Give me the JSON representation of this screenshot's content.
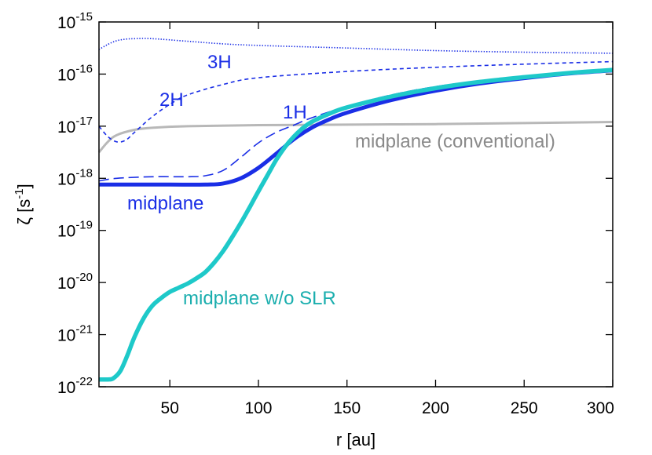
{
  "chart_data": {
    "type": "line",
    "title": "",
    "xlabel": "r [au]",
    "ylabel": {
      "base": "ζ [s",
      "sup": "-1",
      "tail": "]"
    },
    "xscale": "linear",
    "yscale": "log",
    "xlim": [
      10,
      300
    ],
    "ylim_exponent": [
      -22,
      -15
    ],
    "grid": false,
    "x_ticks": [
      50,
      100,
      150,
      200,
      250,
      300
    ],
    "y_ticks": [
      {
        "base": "10",
        "exp": "-22",
        "value": -22
      },
      {
        "base": "10",
        "exp": "-21",
        "value": -21
      },
      {
        "base": "10",
        "exp": "-20",
        "value": -20
      },
      {
        "base": "10",
        "exp": "-19",
        "value": -19
      },
      {
        "base": "10",
        "exp": "-18",
        "value": -18
      },
      {
        "base": "10",
        "exp": "-17",
        "value": -17
      },
      {
        "base": "10",
        "exp": "-16",
        "value": -16
      },
      {
        "base": "10",
        "exp": "-15",
        "value": -15
      }
    ],
    "series": [
      {
        "name": "midplane (conventional)",
        "color": "#b8b8b8",
        "style": "solid",
        "width": 3,
        "points": [
          [
            10,
            -17.5
          ],
          [
            15,
            -17.3
          ],
          [
            20,
            -17.17
          ],
          [
            30,
            -17.07
          ],
          [
            40,
            -17.03
          ],
          [
            60,
            -17.0
          ],
          [
            100,
            -16.98
          ],
          [
            150,
            -16.97
          ],
          [
            200,
            -16.96
          ],
          [
            250,
            -16.94
          ],
          [
            300,
            -16.92
          ]
        ]
      },
      {
        "name": "3H",
        "color": "#1a2ee6",
        "style": "dotted",
        "width": 1.6,
        "points": [
          [
            10,
            -15.53
          ],
          [
            15,
            -15.43
          ],
          [
            20,
            -15.36
          ],
          [
            25,
            -15.33
          ],
          [
            30,
            -15.32
          ],
          [
            40,
            -15.32
          ],
          [
            60,
            -15.37
          ],
          [
            80,
            -15.42
          ],
          [
            100,
            -15.45
          ],
          [
            150,
            -15.5
          ],
          [
            200,
            -15.55
          ],
          [
            250,
            -15.58
          ],
          [
            300,
            -15.6
          ]
        ]
      },
      {
        "name": "2H",
        "color": "#1a2ee6",
        "style": "dashed-short",
        "width": 1.6,
        "points": [
          [
            10,
            -17.0
          ],
          [
            15,
            -17.2
          ],
          [
            20,
            -17.3
          ],
          [
            25,
            -17.27
          ],
          [
            30,
            -17.12
          ],
          [
            40,
            -16.82
          ],
          [
            50,
            -16.58
          ],
          [
            60,
            -16.4
          ],
          [
            80,
            -16.2
          ],
          [
            100,
            -16.07
          ],
          [
            150,
            -15.95
          ],
          [
            200,
            -15.87
          ],
          [
            250,
            -15.81
          ],
          [
            300,
            -15.76
          ]
        ]
      },
      {
        "name": "1H",
        "color": "#1a2ee6",
        "style": "dashed-long",
        "width": 1.6,
        "points": [
          [
            10,
            -18.05
          ],
          [
            20,
            -18.0
          ],
          [
            40,
            -17.97
          ],
          [
            60,
            -17.97
          ],
          [
            70,
            -17.95
          ],
          [
            80,
            -17.85
          ],
          [
            90,
            -17.6
          ],
          [
            100,
            -17.32
          ],
          [
            110,
            -17.12
          ],
          [
            120,
            -16.98
          ],
          [
            130,
            -16.84
          ],
          [
            150,
            -16.62
          ],
          [
            175,
            -16.4
          ],
          [
            200,
            -16.24
          ],
          [
            225,
            -16.13
          ],
          [
            250,
            -16.05
          ],
          [
            275,
            -15.98
          ],
          [
            300,
            -15.92
          ]
        ]
      },
      {
        "name": "midplane",
        "color": "#1a2ee6",
        "style": "solid",
        "width": 5,
        "points": [
          [
            10,
            -18.12
          ],
          [
            30,
            -18.12
          ],
          [
            50,
            -18.12
          ],
          [
            70,
            -18.12
          ],
          [
            80,
            -18.1
          ],
          [
            90,
            -18.0
          ],
          [
            100,
            -17.8
          ],
          [
            110,
            -17.53
          ],
          [
            120,
            -17.25
          ],
          [
            130,
            -17.03
          ],
          [
            140,
            -16.87
          ],
          [
            150,
            -16.74
          ],
          [
            175,
            -16.5
          ],
          [
            200,
            -16.32
          ],
          [
            225,
            -16.18
          ],
          [
            250,
            -16.08
          ],
          [
            275,
            -15.99
          ],
          [
            300,
            -15.93
          ]
        ]
      },
      {
        "name": "midplane w/o SLR",
        "color": "#1ec9c9",
        "style": "solid",
        "width": 5.5,
        "points": [
          [
            10,
            -21.86
          ],
          [
            15,
            -21.86
          ],
          [
            18,
            -21.84
          ],
          [
            22,
            -21.7
          ],
          [
            26,
            -21.4
          ],
          [
            30,
            -21.05
          ],
          [
            35,
            -20.7
          ],
          [
            40,
            -20.45
          ],
          [
            45,
            -20.3
          ],
          [
            50,
            -20.18
          ],
          [
            55,
            -20.1
          ],
          [
            60,
            -20.02
          ],
          [
            65,
            -19.92
          ],
          [
            70,
            -19.8
          ],
          [
            75,
            -19.62
          ],
          [
            80,
            -19.4
          ],
          [
            85,
            -19.14
          ],
          [
            90,
            -18.86
          ],
          [
            95,
            -18.56
          ],
          [
            100,
            -18.25
          ],
          [
            105,
            -17.95
          ],
          [
            110,
            -17.65
          ],
          [
            115,
            -17.4
          ],
          [
            120,
            -17.2
          ],
          [
            125,
            -17.04
          ],
          [
            130,
            -16.92
          ],
          [
            140,
            -16.76
          ],
          [
            150,
            -16.64
          ],
          [
            175,
            -16.43
          ],
          [
            200,
            -16.27
          ],
          [
            225,
            -16.15
          ],
          [
            250,
            -16.06
          ],
          [
            275,
            -15.98
          ],
          [
            300,
            -15.92
          ]
        ]
      }
    ],
    "annotations": [
      {
        "text": "3H",
        "color": "#1a2ee6"
      },
      {
        "text": "2H",
        "color": "#1a2ee6"
      },
      {
        "text": "1H",
        "color": "#1a2ee6"
      },
      {
        "text": "midplane (conventional)",
        "color": "#8a8a8a"
      },
      {
        "text": "midplane",
        "color": "#1a2ee6"
      },
      {
        "text": "midplane w/o SLR",
        "color": "#1aaeae"
      }
    ]
  }
}
